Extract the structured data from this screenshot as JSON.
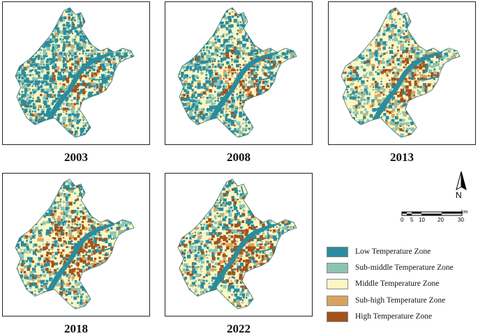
{
  "panels": [
    {
      "year": "2003",
      "mix": [
        0.38,
        0.17,
        0.27,
        0.06,
        0.12
      ]
    },
    {
      "year": "2008",
      "mix": [
        0.28,
        0.17,
        0.33,
        0.07,
        0.15
      ]
    },
    {
      "year": "2013",
      "mix": [
        0.12,
        0.17,
        0.4,
        0.11,
        0.2
      ]
    },
    {
      "year": "2018",
      "mix": [
        0.16,
        0.14,
        0.34,
        0.08,
        0.28
      ]
    },
    {
      "year": "2022",
      "mix": [
        0.14,
        0.14,
        0.33,
        0.08,
        0.31
      ]
    }
  ],
  "north_arrow": {
    "label": "N"
  },
  "scale_bar": {
    "unit": "km",
    "ticks": [
      "0",
      "5",
      "10",
      "20",
      "30"
    ]
  },
  "legend": [
    {
      "label": "Low Temperature Zone",
      "color": "#2b8c9e"
    },
    {
      "label": "Sub-middle Temperature Zone",
      "color": "#8dc3b0"
    },
    {
      "label": "Middle Temperature Zone",
      "color": "#fbf6c4"
    },
    {
      "label": "Sub-high Temperature Zone",
      "color": "#d9a35f"
    },
    {
      "label": "High Temperature Zone",
      "color": "#a3521a"
    }
  ]
}
